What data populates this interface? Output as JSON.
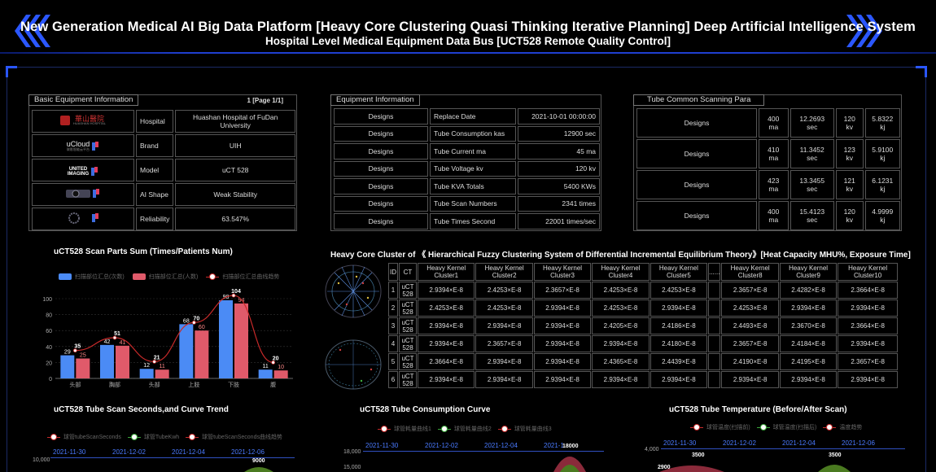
{
  "header": {
    "title": "New Generation Medical AI Big Data Platform [Heavy Core Clustering Quasi Thinking Iterative Planning] Deep Artificial Intelligence System",
    "subtitle": "Hospital Level Medical Equipment Data Bus [UCT528 Remote Quality Control]"
  },
  "basic": {
    "title": "Basic Equipment Information",
    "page": "1 [Page 1/1]",
    "rows": [
      {
        "key": "Hospital",
        "value": "Huashan Hospital of FuDan University",
        "logo": "hospital-logo"
      },
      {
        "key": "Brand",
        "value": "UIH",
        "logo": "ucloud-logo"
      },
      {
        "key": "Model",
        "value": "uCT 528",
        "logo": "united-imaging-logo"
      },
      {
        "key": "AI Shape",
        "value": "Weak Stability",
        "logo": "ai-shape-image"
      },
      {
        "key": "Reliability",
        "value": "63.547%",
        "logo": "reliability-image"
      }
    ],
    "logo_text": {
      "hospital": "華山醫院",
      "hospital_sub": "HUASHAN HOSPITAL",
      "ucloud": "uCloud",
      "ucloud_sub": "联影智能云平台",
      "united": "UNITED\nIMAGING"
    }
  },
  "equip": {
    "title": "Equipment Information",
    "rows": [
      {
        "d": "Designs",
        "k": "Replace Date",
        "v": "2021-10-01 00:00:00"
      },
      {
        "d": "Designs",
        "k": "Tube Consumption kas",
        "v": "12900 sec"
      },
      {
        "d": "Designs",
        "k": "Tube Current ma",
        "v": "45 ma"
      },
      {
        "d": "Designs",
        "k": "Tube Voltage kv",
        "v": "120 kv"
      },
      {
        "d": "Designs",
        "k": "Tube KVA Totals",
        "v": "5400 KWs"
      },
      {
        "d": "Designs",
        "k": "Tube Scan Numbers",
        "v": "2341 times"
      },
      {
        "d": "Designs",
        "k": "Tube Times Second",
        "v": "22001 times/sec"
      }
    ]
  },
  "tube": {
    "title": "Tube Common Scanning Para",
    "rows": [
      {
        "d": "Designs",
        "ma": "400 ma",
        "sec": "12.2693 sec",
        "kv": "120 kv",
        "kj": "5.8322 kj"
      },
      {
        "d": "Designs",
        "ma": "410 ma",
        "sec": "11.3452 sec",
        "kv": "123 kv",
        "kj": "5.9100 kj"
      },
      {
        "d": "Designs",
        "ma": "423 ma",
        "sec": "13.3455 sec",
        "kv": "121 kv",
        "kj": "6.1231 kj"
      },
      {
        "d": "Designs",
        "ma": "400 ma",
        "sec": "15.4123 sec",
        "kv": "120 kv",
        "kj": "4.9999 kj"
      }
    ]
  },
  "scan_parts": {
    "title": "uCT528 Scan Parts Sum (Times/Patients Num)",
    "legend": [
      "扫描部位汇总(次数)",
      "扫描部位汇总(人数)",
      "扫描部位汇总曲线趋势"
    ]
  },
  "chart_data": {
    "type": "bar",
    "categories": [
      "头部",
      "胸部",
      "头部",
      "上肢",
      "下肢",
      "腹"
    ],
    "series": [
      {
        "name": "扫描部位汇总(次数)",
        "values": [
          29,
          42,
          12,
          68,
          98,
          11
        ],
        "color": "#4b8bf5"
      },
      {
        "name": "扫描部位汇总(人数)",
        "values": [
          25,
          41,
          11,
          60,
          94,
          10
        ],
        "color": "#e05a6a"
      },
      {
        "name": "扫描部位汇总曲线趋势",
        "values": [
          35,
          51,
          21,
          70,
          104,
          20
        ],
        "color": "#c92a2a"
      }
    ],
    "ylim": [
      0,
      100
    ],
    "yticks": [
      0,
      20,
      40,
      60,
      80,
      100
    ],
    "grid": true,
    "legend_position": "top"
  },
  "cluster": {
    "title": "Heavy Core Cluster of 《 Hierarchical Fuzzy Clustering System of Differential Incremental Equilibrium Theory》[Heat Capacity MHU%, Exposure Time]",
    "headers": [
      "ID",
      "CT",
      "Heavy Kernel Cluster1",
      "Heavy Kernel Cluster2",
      "Heavy Kernel Cluster3",
      "Heavy Kernel Cluster4",
      "Heavy Kernel Cluster5",
      "......",
      "Heavy Kernel Cluster8",
      "Heavy Kernel Cluster9",
      "Heavy Kernel Cluster10"
    ],
    "rows": [
      [
        "1",
        "uCT 528",
        "2.9394×E-8",
        "2.4253×E-8",
        "2.3657×E-8",
        "2.4253×E-8",
        "2.4253×E-8",
        "",
        "2.3657×E-8",
        "2.4282×E-8",
        "2.3664×E-8"
      ],
      [
        "2",
        "uCT 528",
        "2.4253×E-8",
        "2.4253×E-8",
        "2.9394×E-8",
        "2.4253×E-8",
        "2.9394×E-8",
        "",
        "2.4253×E-8",
        "2.9394×E-8",
        "2.9394×E-8"
      ],
      [
        "3",
        "uCT 528",
        "2.9394×E-8",
        "2.9394×E-8",
        "2.9394×E-8",
        "2.4205×E-8",
        "2.4186×E-8",
        "",
        "2.4493×E-8",
        "2.3670×E-8",
        "2.3664×E-8"
      ],
      [
        "4",
        "uCT 528",
        "2.9394×E-8",
        "2.3657×E-8",
        "2.9394×E-8",
        "2.9394×E-8",
        "2.4180×E-8",
        "",
        "2.3657×E-8",
        "2.4184×E-8",
        "2.9394×E-8"
      ],
      [
        "5",
        "uCT 528",
        "2.3664×E-8",
        "2.9394×E-8",
        "2.9394×E-8",
        "2.4365×E-8",
        "2.4439×E-8",
        "",
        "2.4190×E-8",
        "2.4195×E-8",
        "2.3657×E-8"
      ],
      [
        "6",
        "uCT 528",
        "2.9394×E-8",
        "2.9394×E-8",
        "2.9394×E-8",
        "2.9394×E-8",
        "2.9394×E-8",
        "",
        "2.9394×E-8",
        "2.9394×E-8",
        "2.9394×E-8"
      ]
    ]
  },
  "bottom": {
    "scan_seconds": {
      "title": "uCT528 Tube Scan Seconds,and Curve Trend",
      "legend": [
        "球管tubeScanSeconds",
        "球管TubeKwh",
        "球管tubeScanSeconds曲线趋势"
      ],
      "dates": [
        "2021-11-30",
        "2021-12-02",
        "2021-12-04",
        "2021-12-06"
      ],
      "y_top": "10,000",
      "peak": "9000"
    },
    "consumption": {
      "title": "uCT528 Tube Consumption Curve",
      "legend": [
        "球管耗量曲线1",
        "球管耗量曲线2",
        "球管耗量曲线3"
      ],
      "dates": [
        "2021-11-30",
        "2021-12-02",
        "2021-12-04",
        "2021-1"
      ],
      "y_top": "18,000",
      "y_second": "15,000",
      "peak": "18000"
    },
    "temperature": {
      "title": "uCT528 Tube Temperature (Before/After Scan)",
      "legend": [
        "球管温度(扫描前)",
        "球管温度(扫描后)",
        "温度趋势"
      ],
      "dates": [
        "2021-11-30",
        "2021-12-02",
        "2021-12-04",
        "2021-12-06"
      ],
      "y_top": "4,000",
      "v1": "2900",
      "v2": "3500",
      "v3": "3500"
    }
  }
}
